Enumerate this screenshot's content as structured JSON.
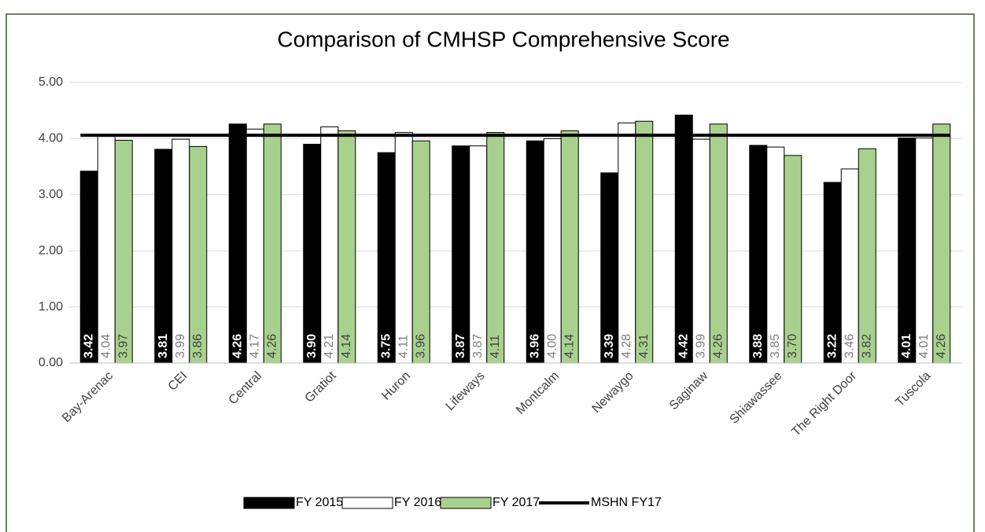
{
  "chart_data": {
    "type": "bar",
    "title": "Comparison of CMHSP Comprehensive Score",
    "categories": [
      "Bay-Arenac",
      "CEI",
      "Central",
      "Gratiot",
      "Huron",
      "Lifeways",
      "Montcalm",
      "Newaygo",
      "Saginaw",
      "Shiawassee",
      "The Right Door",
      "Tuscola"
    ],
    "series": [
      {
        "name": "FY 2015",
        "color": "#000000",
        "label_color": "#ffffff",
        "values": [
          3.42,
          3.81,
          4.26,
          3.9,
          3.75,
          3.87,
          3.96,
          3.39,
          4.42,
          3.88,
          3.22,
          4.01
        ],
        "value_labels": [
          "3.42",
          "3.81",
          "4.26",
          "3.90",
          "3.75",
          "3.87",
          "3.96",
          "3.39",
          "4.42",
          "3.88",
          "3.22",
          "4.01"
        ]
      },
      {
        "name": "FY 2016",
        "color": "#ffffff",
        "label_color": "#7f7f7f",
        "values": [
          4.04,
          3.99,
          4.17,
          4.21,
          4.11,
          3.87,
          4.0,
          4.28,
          3.99,
          3.85,
          3.46,
          4.01
        ],
        "value_labels": [
          "4.04",
          "3.99",
          "4.17",
          "4.21",
          "4.11",
          "3.87",
          "4.00",
          "4.28",
          "3.99",
          "3.85",
          "3.46",
          "4.01"
        ]
      },
      {
        "name": "FY 2017",
        "color": "#a9d18e",
        "label_color": "#404040",
        "values": [
          3.97,
          3.86,
          4.26,
          4.14,
          3.96,
          4.11,
          4.14,
          4.31,
          4.26,
          3.7,
          3.82,
          4.26
        ],
        "value_labels": [
          "3.97",
          "3.86",
          "4.26",
          "4.14",
          "3.96",
          "4.11",
          "4.14",
          "4.31",
          "4.26",
          "3.70",
          "3.82",
          "4.26"
        ]
      }
    ],
    "reference_line": {
      "name": "MSHN FY17",
      "value": 4.06,
      "color": "#000000"
    },
    "ylim": [
      0,
      5
    ],
    "yticks": [
      {
        "value": 0,
        "label": "0.00"
      },
      {
        "value": 1,
        "label": "1.00"
      },
      {
        "value": 2,
        "label": "2.00"
      },
      {
        "value": 3,
        "label": "3.00"
      },
      {
        "value": 4,
        "label": "4.00"
      },
      {
        "value": 5,
        "label": "5.00"
      }
    ],
    "grid": true,
    "legend": "bottom"
  }
}
